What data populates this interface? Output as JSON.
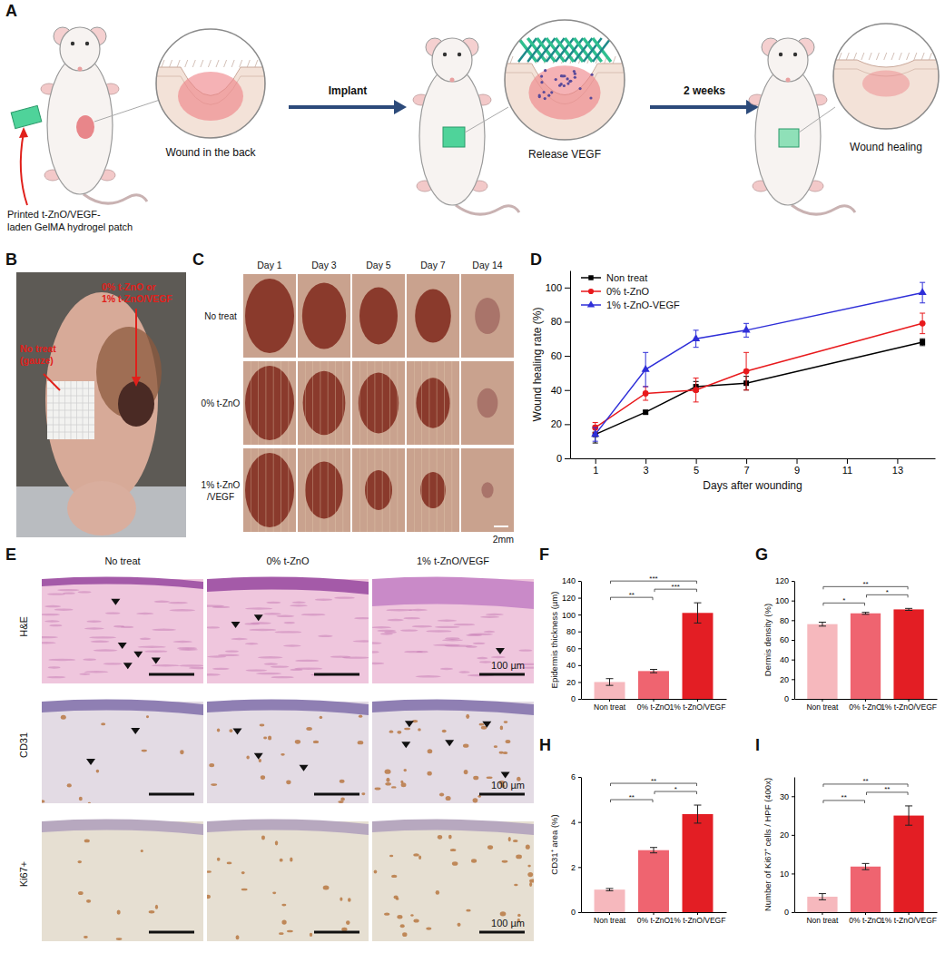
{
  "figure": {
    "panel_labels": [
      "A",
      "B",
      "C",
      "D",
      "E",
      "F",
      "G",
      "H",
      "I"
    ],
    "schematic": {
      "patch_label": [
        "Printed t-ZnO/VEGF-",
        "laden GelMA hydrogel patch"
      ],
      "wound": "Wound in the back",
      "implant": "Implant",
      "release": "Release VEGF",
      "duration": "2 weeks",
      "healing": "Wound healing"
    },
    "photo_b": {
      "left_label": [
        "No treat",
        "(gauze)"
      ],
      "right_label": [
        "0% t-ZnO or",
        "1% t-ZnO/VEGF"
      ]
    },
    "photo_grid": {
      "columns": [
        "Day 1",
        "Day 3",
        "Day 5",
        "Day 7",
        "Day 14"
      ],
      "rows": [
        [
          "No treat"
        ],
        [
          "0% t-ZnO"
        ],
        [
          "1% t-ZnO",
          "/VEGF"
        ]
      ],
      "scale_bar": "2mm"
    },
    "histology": {
      "columns": [
        "No treat",
        "0% t-ZnO",
        "1% t-ZnO/VEGF"
      ],
      "rows": [
        "H&E",
        "CD31",
        "Ki67+"
      ],
      "scale_bar": "100 µm"
    }
  },
  "chart_data": [
    {
      "type": "line",
      "x_label": "Days after wounding",
      "y_label": "Wound healing rate (%)",
      "x": [
        1,
        3,
        5,
        7,
        14
      ],
      "xlim": [
        0,
        14.5
      ],
      "xticks": [
        1,
        3,
        5,
        7,
        9,
        11,
        13
      ],
      "ylim": [
        0,
        110
      ],
      "yticks": [
        0,
        20,
        40,
        60,
        80,
        100
      ],
      "legend": "upper left",
      "series": [
        {
          "name": "Non treat",
          "color": "#000000",
          "marker": "square",
          "values": [
            14,
            27,
            42,
            44,
            68
          ],
          "errors": [
            5,
            1,
            3,
            4,
            2
          ]
        },
        {
          "name": "0% t-ZnO",
          "color": "#e8191c",
          "marker": "circle",
          "values": [
            18,
            38,
            40,
            51,
            79
          ],
          "errors": [
            3,
            4,
            7,
            11,
            6
          ]
        },
        {
          "name": "1% t-ZnO-VEGF",
          "color": "#2e2ed8",
          "marker": "triangle",
          "values": [
            14,
            52,
            70,
            75,
            97
          ],
          "errors": [
            4,
            10,
            5,
            4,
            6
          ]
        }
      ]
    },
    {
      "type": "bar",
      "y_label": "Epidermis thickness (µm)",
      "categories": [
        "Non treat",
        "0% t-ZnO",
        "1% t-ZnO/VEGF"
      ],
      "values": [
        20,
        33,
        102
      ],
      "errors": [
        4,
        2,
        12
      ],
      "colors": [
        "#f6b8bd",
        "#ef6470",
        "#e31e24"
      ],
      "ylim": [
        0,
        140
      ],
      "yticks": [
        0,
        20,
        40,
        60,
        80,
        100,
        120,
        140
      ],
      "annotations": [
        {
          "text": "**",
          "from": "Non treat",
          "to": "0% t-ZnO"
        },
        {
          "text": "***",
          "from": "0% t-ZnO",
          "to": "1% t-ZnO/VEGF"
        },
        {
          "text": "***",
          "from": "Non treat",
          "to": "1% t-ZnO/VEGF"
        }
      ]
    },
    {
      "type": "bar",
      "y_label": "Dermis density (%)",
      "categories": [
        "Non treat",
        "0% t-ZnO",
        "1% t-ZnO/VEGF"
      ],
      "values": [
        76,
        87,
        91
      ],
      "errors": [
        2,
        1,
        1
      ],
      "colors": [
        "#f6b8bd",
        "#ef6470",
        "#e31e24"
      ],
      "ylim": [
        0,
        120
      ],
      "yticks": [
        0,
        20,
        40,
        60,
        80,
        100,
        120
      ],
      "annotations": [
        {
          "text": "*",
          "from": "Non treat",
          "to": "0% t-ZnO"
        },
        {
          "text": "*",
          "from": "0% t-ZnO",
          "to": "1% t-ZnO/VEGF"
        },
        {
          "text": "**",
          "from": "Non treat",
          "to": "1% t-ZnO/VEGF"
        }
      ]
    },
    {
      "type": "bar",
      "y_label": "CD31⁺ area (%)",
      "categories": [
        "Non treat",
        "0% t-ZnO",
        "1% t-ZnO/VEGF"
      ],
      "values": [
        1.0,
        2.75,
        4.35
      ],
      "errors": [
        0.05,
        0.12,
        0.4
      ],
      "colors": [
        "#f6b8bd",
        "#ef6470",
        "#e31e24"
      ],
      "ylim": [
        0,
        6
      ],
      "yticks": [
        0,
        2,
        4,
        6
      ],
      "annotations": [
        {
          "text": "**",
          "from": "Non treat",
          "to": "0% t-ZnO"
        },
        {
          "text": "*",
          "from": "0% t-ZnO",
          "to": "1% t-ZnO/VEGF"
        },
        {
          "text": "**",
          "from": "Non treat",
          "to": "1% t-ZnO/VEGF"
        }
      ]
    },
    {
      "type": "bar",
      "y_label": "Number of Ki67⁺ cells / HPF (400x)",
      "categories": [
        "Non treat",
        "0% t-ZnO",
        "1% t-ZnO/VEGF"
      ],
      "values": [
        4,
        11.8,
        25
      ],
      "errors": [
        0.8,
        0.8,
        2.5
      ],
      "colors": [
        "#f6b8bd",
        "#ef6470",
        "#e31e24"
      ],
      "ylim": [
        0,
        35
      ],
      "yticks": [
        0,
        10,
        20,
        30
      ],
      "annotations": [
        {
          "text": "**",
          "from": "Non treat",
          "to": "0% t-ZnO"
        },
        {
          "text": "**",
          "from": "0% t-ZnO",
          "to": "1% t-ZnO/VEGF"
        },
        {
          "text": "**",
          "from": "Non treat",
          "to": "1% t-ZnO/VEGF"
        }
      ]
    }
  ]
}
